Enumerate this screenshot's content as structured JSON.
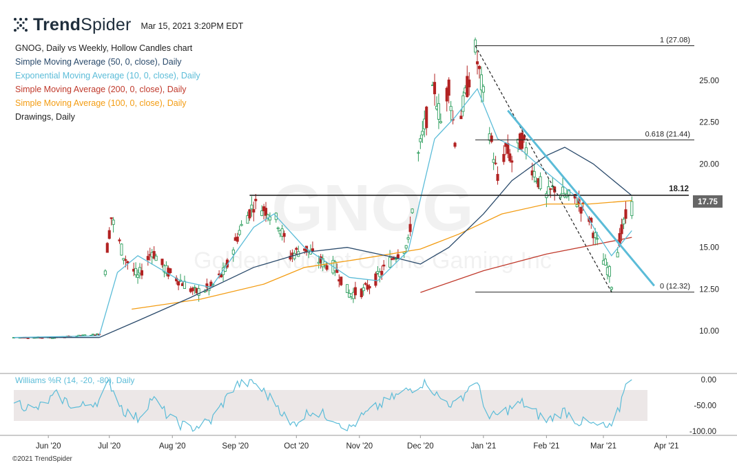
{
  "header": {
    "logo_bold": "Trend",
    "logo_light": "Spider",
    "timestamp": "Mar 15, 2021 3:20PM EDT"
  },
  "legend": [
    {
      "text": "GNOG, Daily vs Weekly, Hollow Candles chart",
      "color": "#222222"
    },
    {
      "text": "Simple Moving Average (50, 0, close), Daily",
      "color": "#2a4a6b"
    },
    {
      "text": "Exponential Moving Average (10, 0, close), Daily",
      "color": "#5bbcd8"
    },
    {
      "text": "Simple Moving Average (200, 0, close), Daily",
      "color": "#c0392b"
    },
    {
      "text": "Simple Moving Average (100, 0, close), Daily",
      "color": "#f39c12"
    },
    {
      "text": "Drawings, Daily",
      "color": "#222222"
    }
  ],
  "watermark": {
    "ticker": "GNOG",
    "company": "Golden Nugget Online Gaming Inc"
  },
  "copyright": "©2021 TrendSpider",
  "colors": {
    "up_candle": "#2e9e5e",
    "down_candle": "#b22222",
    "sma50": "#2a4a6b",
    "ema10": "#5bbcd8",
    "sma200": "#c0392b",
    "sma100": "#f39c12",
    "williams": "#5bbcd8",
    "trendline": "#5bbcd8",
    "price_tag_bg": "#666666"
  },
  "chart_data": [
    {
      "type": "candlestick",
      "ticker": "GNOG",
      "x_ticks": [
        "Jun '20",
        "Jul '20",
        "Aug '20",
        "Sep '20",
        "Oct '20",
        "Nov '20",
        "Dec '20",
        "Jan '21",
        "Feb '21",
        "Mar '21",
        "Apr '21"
      ],
      "y_ticks": [
        "25.00",
        "22.50",
        "20.00",
        "15.00",
        "12.50",
        "10.00"
      ],
      "ylim": [
        8.8,
        28.2
      ],
      "current_price": "17.75",
      "horizontal_level": {
        "label": "18.12",
        "value": 18.12
      },
      "fibonacci": [
        {
          "label": "1 (27.08)",
          "value": 27.08
        },
        {
          "label": "0.618 (21.44)",
          "value": 21.44
        },
        {
          "label": "0 (12.32)",
          "value": 12.32
        }
      ],
      "price_path": [
        [
          "2020-05-15",
          9.6
        ],
        [
          "2020-06-05",
          9.6
        ],
        [
          "2020-06-26",
          9.8
        ],
        [
          "2020-06-30",
          15.0
        ],
        [
          "2020-07-02",
          16.8
        ],
        [
          "2020-07-08",
          14.5
        ],
        [
          "2020-07-15",
          13.2
        ],
        [
          "2020-07-22",
          14.8
        ],
        [
          "2020-07-29",
          13.6
        ],
        [
          "2020-08-05",
          13.0
        ],
        [
          "2020-08-12",
          12.3
        ],
        [
          "2020-08-20",
          12.6
        ],
        [
          "2020-08-27",
          13.6
        ],
        [
          "2020-09-03",
          16.0
        ],
        [
          "2020-09-10",
          17.6
        ],
        [
          "2020-09-17",
          17.2
        ],
        [
          "2020-09-22",
          16.5
        ],
        [
          "2020-09-28",
          14.5
        ],
        [
          "2020-10-05",
          15.0
        ],
        [
          "2020-10-12",
          14.2
        ],
        [
          "2020-10-20",
          13.8
        ],
        [
          "2020-10-27",
          12.2
        ],
        [
          "2020-11-03",
          12.4
        ],
        [
          "2020-11-10",
          13.2
        ],
        [
          "2020-11-18",
          14.5
        ],
        [
          "2020-11-25",
          15.2
        ],
        [
          "2020-11-30",
          20.5
        ],
        [
          "2020-12-04",
          22.8
        ],
        [
          "2020-12-08",
          24.5
        ],
        [
          "2020-12-11",
          22.5
        ],
        [
          "2020-12-15",
          24.8
        ],
        [
          "2020-12-18",
          21.5
        ],
        [
          "2020-12-22",
          23.5
        ],
        [
          "2020-12-28",
          26.8
        ],
        [
          "2021-01-04",
          22.0
        ],
        [
          "2021-01-08",
          19.0
        ],
        [
          "2021-01-12",
          21.0
        ],
        [
          "2021-01-15",
          20.2
        ],
        [
          "2021-01-20",
          21.5
        ],
        [
          "2021-01-26",
          19.5
        ],
        [
          "2021-02-01",
          18.0
        ],
        [
          "2021-02-05",
          18.6
        ],
        [
          "2021-02-10",
          18.1
        ],
        [
          "2021-02-16",
          17.8
        ],
        [
          "2021-02-22",
          16.8
        ],
        [
          "2021-02-26",
          15.2
        ],
        [
          "2021-03-01",
          14.2
        ],
        [
          "2021-03-04",
          13.5
        ],
        [
          "2021-03-05",
          12.8
        ],
        [
          "2021-03-09",
          15.5
        ],
        [
          "2021-03-12",
          16.8
        ],
        [
          "2021-03-15",
          17.75
        ]
      ],
      "sma50": [
        [
          "2020-05-15",
          9.6
        ],
        [
          "2020-06-26",
          9.6
        ],
        [
          "2020-07-15",
          10.6
        ],
        [
          "2020-08-10",
          12.0
        ],
        [
          "2020-09-10",
          13.8
        ],
        [
          "2020-10-05",
          14.7
        ],
        [
          "2020-10-26",
          15.0
        ],
        [
          "2020-11-18",
          14.4
        ],
        [
          "2020-12-01",
          14.0
        ],
        [
          "2020-12-15",
          15.0
        ],
        [
          "2021-01-01",
          17.0
        ],
        [
          "2021-01-15",
          19.0
        ],
        [
          "2021-02-01",
          20.5
        ],
        [
          "2021-02-10",
          21.0
        ],
        [
          "2021-02-24",
          20.0
        ],
        [
          "2021-03-15",
          18.1
        ]
      ],
      "ema10": [
        [
          "2020-05-15",
          9.6
        ],
        [
          "2020-06-26",
          9.7
        ],
        [
          "2020-07-05",
          13.5
        ],
        [
          "2020-07-15",
          14.5
        ],
        [
          "2020-08-05",
          13.0
        ],
        [
          "2020-08-20",
          12.6
        ],
        [
          "2020-09-10",
          16.2
        ],
        [
          "2020-09-20",
          17.0
        ],
        [
          "2020-10-05",
          15.0
        ],
        [
          "2020-10-27",
          13.2
        ],
        [
          "2020-11-10",
          13.0
        ],
        [
          "2020-11-25",
          14.8
        ],
        [
          "2020-12-08",
          21.5
        ],
        [
          "2020-12-18",
          22.8
        ],
        [
          "2020-12-29",
          24.5
        ],
        [
          "2021-01-08",
          21.5
        ],
        [
          "2021-01-20",
          20.8
        ],
        [
          "2021-02-01",
          19.5
        ],
        [
          "2021-02-16",
          18.0
        ],
        [
          "2021-02-26",
          15.8
        ],
        [
          "2021-03-05",
          14.5
        ],
        [
          "2021-03-15",
          16.0
        ]
      ],
      "sma200": [
        [
          "2020-12-01",
          12.3
        ],
        [
          "2021-01-01",
          13.6
        ],
        [
          "2021-02-01",
          14.6
        ],
        [
          "2021-03-15",
          15.6
        ]
      ],
      "sma100": [
        [
          "2020-07-12",
          11.3
        ],
        [
          "2020-08-15",
          11.9
        ],
        [
          "2020-09-15",
          12.8
        ],
        [
          "2020-10-05",
          13.8
        ],
        [
          "2020-11-01",
          14.3
        ],
        [
          "2020-12-01",
          14.9
        ],
        [
          "2020-12-20",
          15.8
        ],
        [
          "2021-01-10",
          17.0
        ],
        [
          "2021-02-01",
          17.6
        ],
        [
          "2021-02-22",
          17.6
        ],
        [
          "2021-03-15",
          17.8
        ]
      ],
      "trendlines": [
        {
          "style": "dashed",
          "from": [
            "2020-12-28",
            27.08
          ],
          "to": [
            "2021-03-05",
            12.32
          ]
        },
        {
          "style": "solid",
          "from": [
            "2021-01-13",
            23.2
          ],
          "to": [
            "2021-03-26",
            12.7
          ]
        }
      ]
    },
    {
      "type": "line",
      "indicator": "Williams %R (14, -20, -80), Daily",
      "y_ticks": [
        "0.00",
        "-50.00",
        "-100.00"
      ],
      "ylim": [
        -105,
        5
      ],
      "band": [
        -80,
        -20
      ],
      "values": [
        [
          "2020-05-15",
          -40
        ],
        [
          "2020-05-25",
          -60
        ],
        [
          "2020-06-05",
          -30
        ],
        [
          "2020-06-15",
          -55
        ],
        [
          "2020-06-26",
          -40
        ],
        [
          "2020-07-01",
          -5
        ],
        [
          "2020-07-08",
          -60
        ],
        [
          "2020-07-15",
          -75
        ],
        [
          "2020-07-22",
          -35
        ],
        [
          "2020-08-01",
          -80
        ],
        [
          "2020-08-10",
          -95
        ],
        [
          "2020-08-20",
          -80
        ],
        [
          "2020-09-01",
          -10
        ],
        [
          "2020-09-10",
          -5
        ],
        [
          "2020-09-22",
          -50
        ],
        [
          "2020-09-28",
          -90
        ],
        [
          "2020-10-08",
          -60
        ],
        [
          "2020-10-20",
          -75
        ],
        [
          "2020-10-27",
          -95
        ],
        [
          "2020-11-03",
          -70
        ],
        [
          "2020-11-15",
          -40
        ],
        [
          "2020-11-25",
          -20
        ],
        [
          "2020-12-04",
          -2
        ],
        [
          "2020-12-10",
          -35
        ],
        [
          "2020-12-18",
          -50
        ],
        [
          "2020-12-28",
          0
        ],
        [
          "2021-01-04",
          -75
        ],
        [
          "2021-01-12",
          -60
        ],
        [
          "2021-01-20",
          -45
        ],
        [
          "2021-02-01",
          -80
        ],
        [
          "2021-02-10",
          -60
        ],
        [
          "2021-02-16",
          -80
        ],
        [
          "2021-02-26",
          -90
        ],
        [
          "2021-03-05",
          -95
        ],
        [
          "2021-03-09",
          -55
        ],
        [
          "2021-03-12",
          0
        ],
        [
          "2021-03-15",
          -2
        ]
      ]
    }
  ]
}
